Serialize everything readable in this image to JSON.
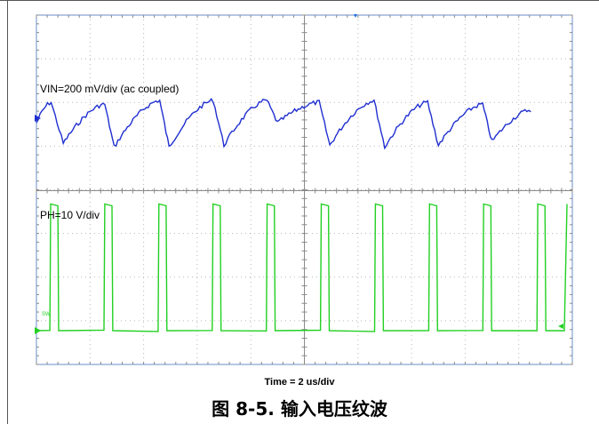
{
  "chart_data": {
    "type": "line",
    "title": "",
    "xlabel": "Time = 2 us/div",
    "caption": "图 8-5. 输入电压纹波",
    "grid": true,
    "x_divisions": 10,
    "y_divisions": 8,
    "series": [
      {
        "name": "VIN=200 mV/div (ac coupled)",
        "color": "#1f2fd0",
        "x": [
          0.0,
          0.55,
          1.0,
          2.55,
          2.9,
          4.6,
          4.95,
          6.6,
          7.0,
          8.6,
          9.0,
          10.55,
          10.95,
          12.6,
          13.0,
          14.6,
          15.0,
          16.65,
          17.0,
          18.45
        ],
        "y": [
          -0.1,
          0.45,
          -0.65,
          0.4,
          -0.75,
          0.5,
          -0.75,
          0.5,
          -0.7,
          0.5,
          -0.1,
          0.45,
          -0.7,
          0.5,
          -0.75,
          0.45,
          -0.7,
          0.4,
          -0.6,
          0.25
        ]
      },
      {
        "name": "PH=10 V/div",
        "color": "#22d022",
        "period_us": 2.02,
        "on_time_us": 0.3,
        "first_rise_us": 0.5,
        "high_v": 29,
        "low_v": 0
      }
    ]
  }
}
